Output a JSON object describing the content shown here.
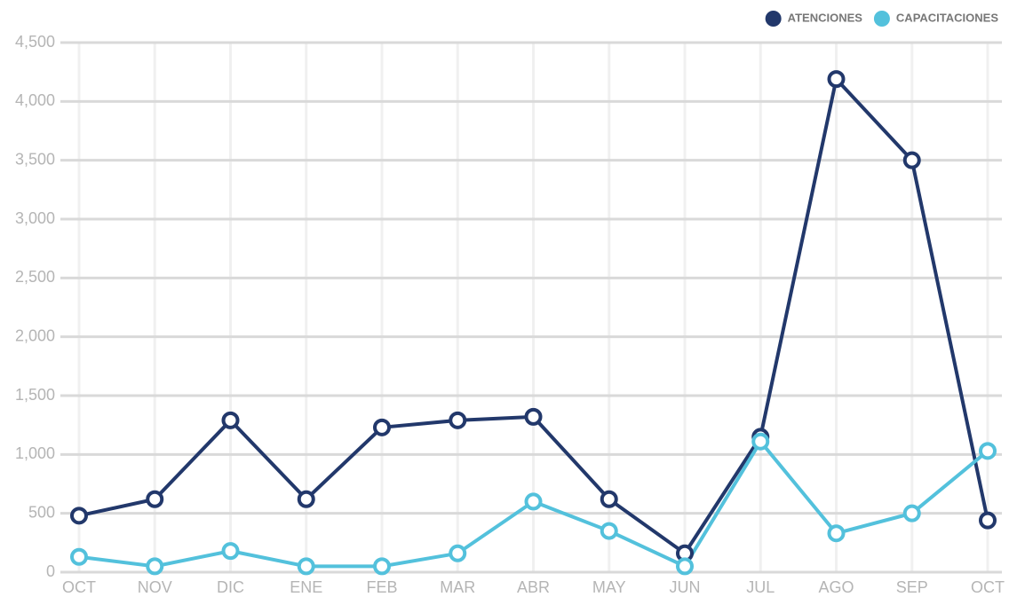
{
  "chart_data": {
    "type": "line",
    "categories": [
      "OCT",
      "NOV",
      "DIC",
      "ENE",
      "FEB",
      "MAR",
      "ABR",
      "MAY",
      "JUN",
      "JUL",
      "AGO",
      "SEP",
      "OCT"
    ],
    "series": [
      {
        "name": "ATENCIONES",
        "color": "#22386b",
        "values": [
          480,
          620,
          1290,
          620,
          1230,
          1290,
          1320,
          620,
          160,
          1150,
          4190,
          3500,
          440
        ]
      },
      {
        "name": "CAPACITACIONES",
        "color": "#53c1dc",
        "values": [
          130,
          50,
          180,
          50,
          50,
          160,
          600,
          350,
          50,
          1110,
          330,
          500,
          1030
        ]
      }
    ],
    "ylim": [
      0,
      4500
    ],
    "yticks": [
      0,
      500,
      {
        "value": 1000,
        "label": "1,000"
      },
      {
        "value": 1500,
        "label": "1,500"
      },
      {
        "value": 2000,
        "label": "2,000"
      },
      {
        "value": 2500,
        "label": "2,500"
      },
      {
        "value": 3000,
        "label": "3,000"
      },
      {
        "value": 3500,
        "label": "3,500"
      },
      {
        "value": 4000,
        "label": "4,000"
      },
      {
        "value": 4500,
        "label": "4,500"
      }
    ],
    "grid": true,
    "legend": "top-right"
  }
}
